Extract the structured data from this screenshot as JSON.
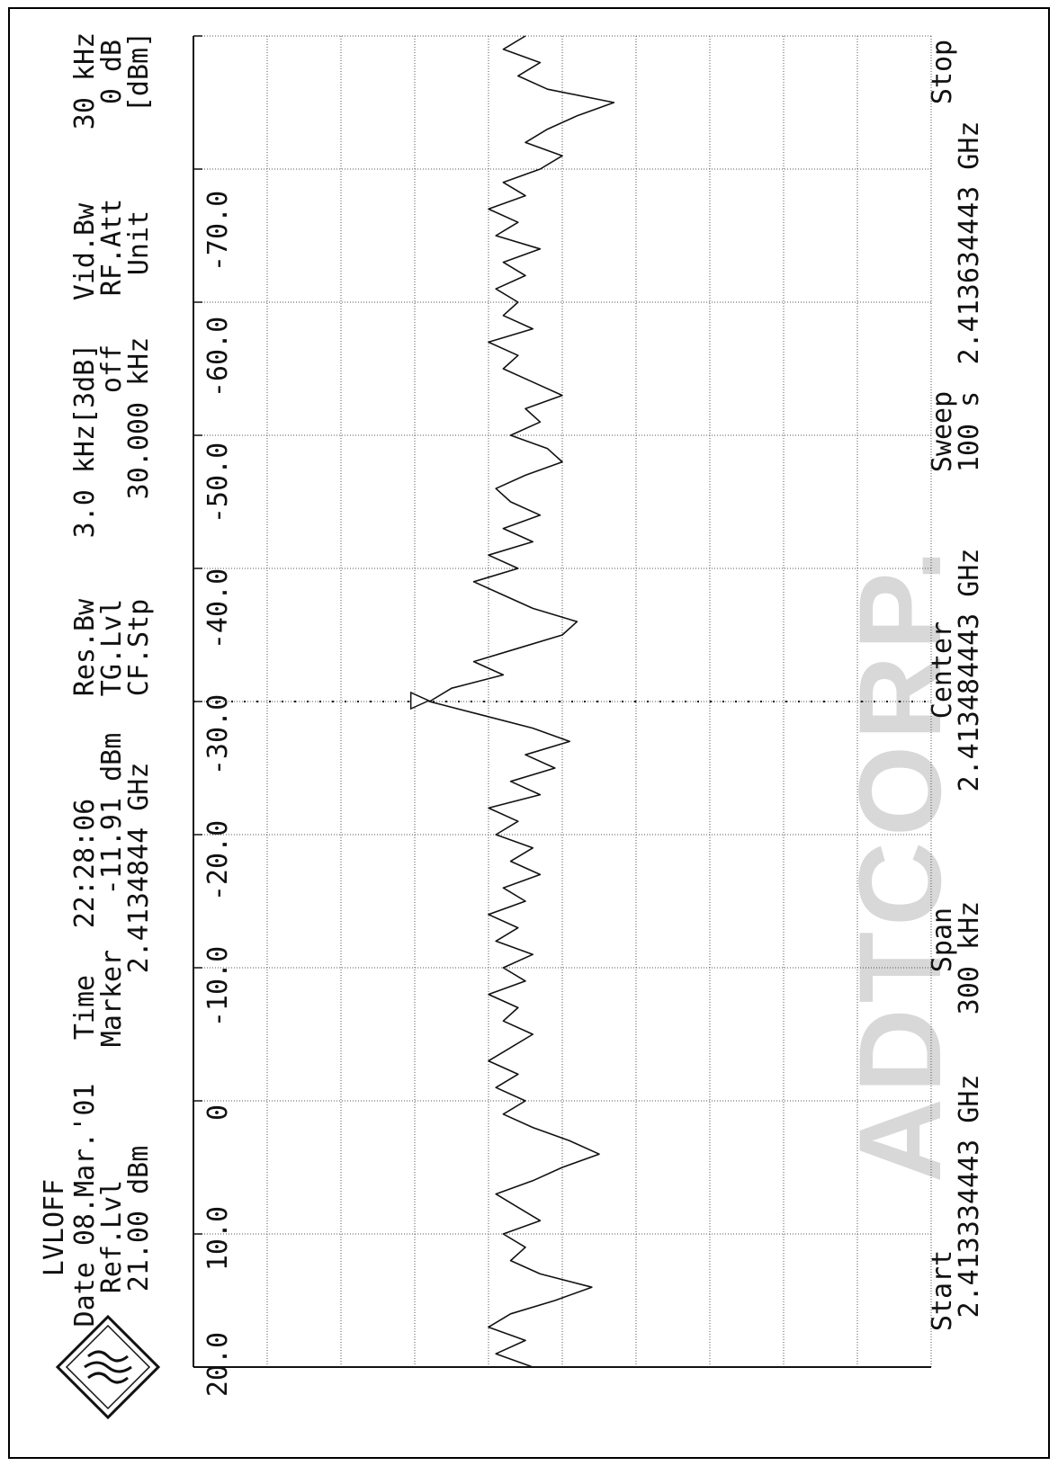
{
  "header": {
    "mode": "LVLOFF",
    "date_line": "Date 08.Mar.'01",
    "time_label": "Time",
    "time_value": "22:28:06",
    "ref_label": "Ref.Lvl",
    "ref_value": "21.00 dBm",
    "marker_label": "Marker",
    "marker_level": "-11.91 dBm",
    "marker_freq": "2.4134844 GHz",
    "res_bw_label": "Res.Bw",
    "res_bw_value": "3.0 kHz[3dB]",
    "tg_label": "TG.Lvl",
    "tg_value": "off",
    "cf_label": "CF.Stp",
    "cf_value": "30.000 kHz",
    "vid_bw_label": "Vid.Bw",
    "vid_bw_value": "30 kHz",
    "rf_att_label": "RF.Att",
    "rf_att_value": "0 dB",
    "unit_label": "Unit",
    "unit_value": "[dBm]"
  },
  "footer": {
    "start_label": "Start",
    "start_value": "2.413334443 GHz",
    "span_label": "Span",
    "span_value": "300 kHz",
    "center_label": "Center",
    "center_value": "2.413484443 GHz",
    "sweep_label": "Sweep",
    "sweep_value": "100 s",
    "stop_label": "Stop",
    "stop_value": "2.413634443 GHz"
  },
  "watermark": "ADTCORP.",
  "chart_data": {
    "type": "line",
    "xlim": [
      0,
      300
    ],
    "ylim": [
      -80,
      20
    ],
    "yticks": [
      "20.0",
      "10.0",
      "0",
      "-10.0",
      "-20.0",
      "-30.0",
      "-40.0",
      "-50.0",
      "-60.0",
      "-70.0"
    ],
    "grid": true,
    "marker": {
      "x": 150.2,
      "y": -11.91
    },
    "colors": {
      "trace": "#111111",
      "grid": "#555555",
      "watermark": "#d8d8d8"
    },
    "series": [
      {
        "x": [
          0,
          3,
          6,
          9,
          12,
          15,
          18,
          21,
          24,
          27,
          30,
          33,
          36,
          39,
          42,
          45,
          48,
          51,
          54,
          57,
          60,
          63,
          66,
          69,
          72,
          75,
          78,
          81,
          84,
          87,
          90,
          93,
          96,
          99,
          102,
          105,
          108,
          111,
          114,
          117,
          120,
          123,
          126,
          129,
          132,
          135,
          138,
          141,
          144,
          147,
          150,
          153,
          156,
          159,
          162,
          165,
          168,
          171,
          174,
          177,
          180,
          183,
          186,
          189,
          192,
          195,
          198,
          201,
          204,
          207,
          210,
          213,
          216,
          219,
          222,
          225,
          228,
          231,
          234,
          237,
          240,
          243,
          246,
          249,
          252,
          255,
          258,
          261,
          264,
          267,
          270,
          273,
          276,
          279,
          282,
          285,
          288,
          291,
          294,
          297,
          300
        ],
        "values": [
          -26,
          -21,
          -25,
          -20,
          -23,
          -29,
          -34,
          -27,
          -23,
          -25,
          -22,
          -27,
          -24,
          -21,
          -26,
          -30,
          -35,
          -31,
          -26,
          -22,
          -25,
          -21,
          -24,
          -20,
          -23,
          -26,
          -22,
          -24,
          -20,
          -25,
          -22,
          -26,
          -21,
          -24,
          -20,
          -25,
          -22,
          -27,
          -23,
          -26,
          -21,
          -24,
          -20,
          -27,
          -23,
          -29,
          -25,
          -31,
          -26,
          -19,
          -12,
          -15,
          -22,
          -18,
          -24,
          -30,
          -32,
          -26,
          -22,
          -18,
          -24,
          -20,
          -26,
          -22,
          -27,
          -23,
          -21,
          -25,
          -30,
          -28,
          -23,
          -27,
          -25,
          -30,
          -26,
          -22,
          -24,
          -20,
          -26,
          -22,
          -24,
          -21,
          -25,
          -22,
          -27,
          -21,
          -24,
          -20,
          -25,
          -22,
          -27,
          -30,
          -25,
          -28,
          -32,
          -37,
          -28,
          -24,
          -27,
          -22,
          -25
        ]
      }
    ]
  }
}
